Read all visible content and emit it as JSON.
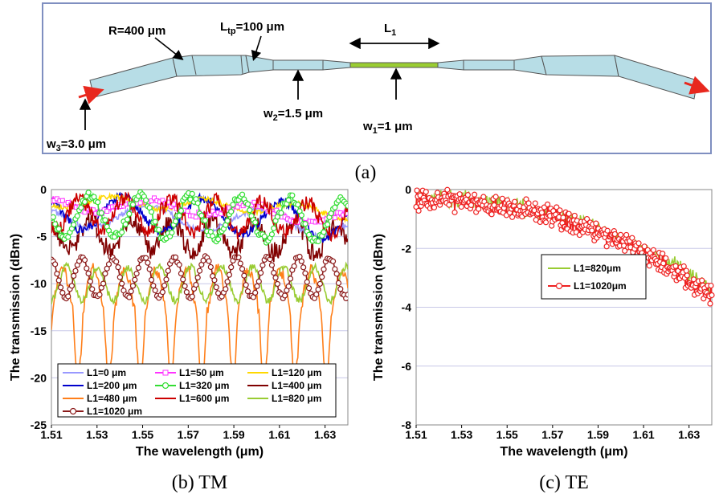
{
  "panel_a": {
    "caption": "(a)",
    "labels": {
      "R": "R=400 μm",
      "Ltp_main": "L",
      "Ltp_sub": "tp",
      "Ltp_rest": "=100 μm",
      "L1_main": "L",
      "L1_sub": "1",
      "w2_main": "w",
      "w2_sub": "2",
      "w2_rest": "=1.5 μm",
      "w1_main": "w",
      "w1_sub": "1",
      "w1_rest": "=1 μm",
      "w3_main": "w",
      "w3_sub": "3",
      "w3_rest": "=3.0 μm"
    },
    "colors": {
      "waveguide": "#b7dde6",
      "center": "#9acd32",
      "arrow": "#e8281e",
      "frame": "#7f8fc0"
    }
  },
  "chart_data": [
    {
      "type": "line",
      "caption": "(b) TM",
      "xlabel": "The wavelength (μm)",
      "ylabel": "The transmission (dBm)",
      "xlim": [
        1.51,
        1.64
      ],
      "ylim": [
        -25,
        0
      ],
      "xticks": [
        "1.51",
        "1.53",
        "1.55",
        "1.57",
        "1.59",
        "1.61",
        "1.63"
      ],
      "yticks": [
        "0",
        "-5",
        "-10",
        "-15",
        "-20",
        "-25"
      ],
      "grid": true,
      "legend": "bottom-left",
      "series": [
        {
          "name": "L1=0 μm",
          "color": "#9999ff",
          "marker": "none",
          "mean": -2.8,
          "amp": 1.2,
          "period": 0.05,
          "phase": 1.0,
          "noise": 0.3,
          "trend": -1.0
        },
        {
          "name": "L1=50 μm",
          "color": "#ff33ff",
          "marker": "square",
          "mean": -1.6,
          "amp": 0.7,
          "period": 0.045,
          "phase": 0.3,
          "noise": 0.3,
          "trend": -1.5
        },
        {
          "name": "L1=120 μm",
          "color": "#ffd800",
          "marker": "none",
          "mean": -1.3,
          "amp": 0.6,
          "period": 0.04,
          "phase": 2.0,
          "noise": 0.3,
          "trend": -1.2
        },
        {
          "name": "L1=200 μm",
          "color": "#0000cc",
          "marker": "none",
          "mean": -2.5,
          "amp": 1.8,
          "period": 0.035,
          "phase": 0.7,
          "noise": 0.5,
          "trend": -1.0
        },
        {
          "name": "L1=320 μm",
          "color": "#33dd33",
          "marker": "circle",
          "mean": -2.8,
          "amp": 2.2,
          "period": 0.022,
          "phase": 1.5,
          "noise": 0.4,
          "trend": -0.5
        },
        {
          "name": "L1=400 μm",
          "color": "#800000",
          "marker": "none",
          "mean": -4.8,
          "amp": 1.6,
          "period": 0.018,
          "phase": 0.4,
          "noise": 1.1,
          "trend": -0.5
        },
        {
          "name": "L1=480 μm",
          "color": "#ff7f1a",
          "marker": "none",
          "mean": -11.5,
          "amp": 3.0,
          "period": 0.0136,
          "phase": 0.9,
          "noise": 0.7,
          "trend": 0.0
        },
        {
          "name": "L1=600 μm",
          "color": "#cc0000",
          "marker": "none",
          "mean": -2.6,
          "amp": 1.7,
          "period": 0.02,
          "phase": 2.4,
          "noise": 0.8,
          "trend": -0.6
        },
        {
          "name": "L1=820 μm",
          "color": "#99cc33",
          "marker": "none",
          "mean": -10.0,
          "amp": 1.8,
          "period": 0.0136,
          "phase": 3.2,
          "noise": 0.4,
          "trend": 0.0
        },
        {
          "name": "L1=1020 μm",
          "color": "#8b1a1a",
          "marker": "circle",
          "mean": -9.3,
          "amp": 2.1,
          "period": 0.0136,
          "phase": 0.2,
          "noise": 0.2,
          "trend": 0.0
        }
      ]
    },
    {
      "type": "line",
      "caption": "(c) TE",
      "xlabel": "The wavelength (μm)",
      "ylabel": "The transmission (dBm)",
      "xlim": [
        1.51,
        1.64
      ],
      "ylim": [
        -8,
        0
      ],
      "xticks": [
        "1.51",
        "1.53",
        "1.55",
        "1.57",
        "1.59",
        "1.61",
        "1.63"
      ],
      "yticks": [
        "0",
        "-2",
        "-4",
        "-6",
        "-8"
      ],
      "grid": true,
      "legend": "right",
      "series": [
        {
          "name": "L1=820μm",
          "color": "#99cc33",
          "marker": "none",
          "y_start": -0.3,
          "y_end": -3.4,
          "curve": 2.2,
          "noise": 0.2
        },
        {
          "name": "L1=1020μm",
          "color": "#ee2222",
          "marker": "circle",
          "y_start": -0.35,
          "y_end": -3.6,
          "curve": 2.2,
          "noise": 0.25
        }
      ]
    }
  ]
}
